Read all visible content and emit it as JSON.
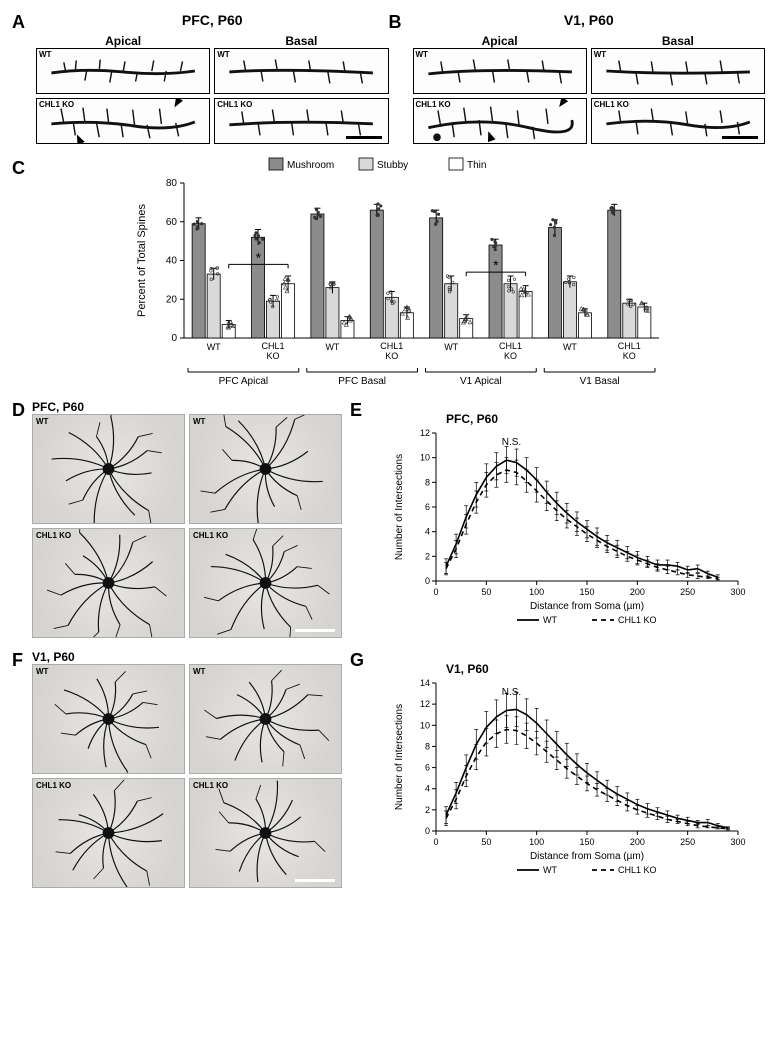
{
  "panelA": {
    "letter": "A",
    "title": "PFC, P60",
    "columns": [
      "Apical",
      "Basal"
    ],
    "rows": [
      "WT",
      "CHL1 KO"
    ],
    "arrows_on_ko_apical": true,
    "scalebar_on": "ko_basal"
  },
  "panelB": {
    "letter": "B",
    "title": "V1, P60",
    "columns": [
      "Apical",
      "Basal"
    ],
    "rows": [
      "WT",
      "CHL1 KO"
    ],
    "arrows_on_ko_apical": true,
    "scalebar_on": "ko_basal"
  },
  "panelC": {
    "letter": "C",
    "type": "bar",
    "legend": [
      {
        "label": "Mushroom",
        "color": "#8c8c8c"
      },
      {
        "label": "Stubby",
        "color": "#d9d9d9"
      },
      {
        "label": "Thin",
        "color": "#ffffff"
      }
    ],
    "y_label": "Percent of Total Spines",
    "y_lim": [
      0,
      80
    ],
    "y_tick_step": 20,
    "groups": [
      {
        "region": "PFC Apical",
        "cond": "WT",
        "vals": [
          59,
          33,
          7
        ],
        "err": [
          3,
          3,
          2
        ]
      },
      {
        "region": "PFC Apical",
        "cond": "CHL1 KO",
        "vals": [
          52,
          19,
          28
        ],
        "err": [
          4,
          3,
          4
        ]
      },
      {
        "region": "PFC Basal",
        "cond": "WT",
        "vals": [
          64,
          26,
          9
        ],
        "err": [
          3,
          3,
          2
        ]
      },
      {
        "region": "PFC Basal",
        "cond": "CHL1 KO",
        "vals": [
          66,
          21,
          13
        ],
        "err": [
          3,
          3,
          3
        ]
      },
      {
        "region": "V1 Apical",
        "cond": "WT",
        "vals": [
          62,
          28,
          10
        ],
        "err": [
          4,
          4,
          2
        ]
      },
      {
        "region": "V1 Apical",
        "cond": "CHL1 KO",
        "vals": [
          48,
          28,
          24
        ],
        "err": [
          3,
          4,
          3
        ]
      },
      {
        "region": "V1 Basal",
        "cond": "WT",
        "vals": [
          57,
          29,
          13
        ],
        "err": [
          4,
          3,
          2
        ]
      },
      {
        "region": "V1 Basal",
        "cond": "CHL1 KO",
        "vals": [
          66,
          18,
          16
        ],
        "err": [
          3,
          2,
          2
        ]
      }
    ],
    "region_labels": [
      "PFC Apical",
      "PFC Basal",
      "V1 Apical",
      "V1 Basal"
    ],
    "sig_brackets": [
      {
        "from_group": 0,
        "to_group": 1,
        "bar_index": 2,
        "label": "*",
        "y": 38
      },
      {
        "from_group": 4,
        "to_group": 5,
        "bar_index": 2,
        "label": "*",
        "y": 34
      }
    ],
    "axis_fontsize": 11,
    "tick_fontsize": 10,
    "bar_border": "#000",
    "scatter_color": "#333"
  },
  "panelD": {
    "letter": "D",
    "title": "PFC, P60",
    "genotypes": [
      "WT",
      "WT",
      "CHL1 KO",
      "CHL1 KO"
    ],
    "scalebar_tile_index": 3
  },
  "panelE": {
    "letter": "E",
    "type": "line",
    "title": "PFC, P60",
    "y_label": "Number of Intersections",
    "x_label": "Distance from Soma (µm)",
    "x_lim": [
      0,
      300
    ],
    "x_tick_step": 50,
    "y_lim": [
      0,
      12
    ],
    "y_tick_step": 2,
    "ns_label": "N.S.",
    "series": [
      {
        "name": "WT",
        "style": "solid",
        "color": "#000",
        "x": [
          10,
          20,
          30,
          40,
          50,
          60,
          70,
          80,
          90,
          100,
          110,
          120,
          130,
          140,
          150,
          160,
          170,
          180,
          190,
          200,
          210,
          220,
          230,
          240,
          250,
          260,
          270,
          280
        ],
        "y": [
          1.2,
          3.0,
          5.2,
          7.0,
          8.4,
          9.3,
          9.8,
          9.6,
          9.0,
          8.2,
          7.2,
          6.3,
          5.5,
          4.8,
          4.2,
          3.6,
          3.1,
          2.7,
          2.3,
          1.9,
          1.6,
          1.3,
          1.3,
          1.2,
          0.9,
          1.0,
          0.6,
          0.3
        ],
        "err": [
          0.6,
          0.8,
          0.9,
          1.0,
          1.1,
          1.1,
          1.1,
          1.1,
          1.0,
          1.0,
          0.9,
          0.9,
          0.8,
          0.8,
          0.7,
          0.7,
          0.6,
          0.6,
          0.5,
          0.5,
          0.4,
          0.4,
          0.4,
          0.3,
          0.3,
          0.3,
          0.2,
          0.2
        ]
      },
      {
        "name": "CHL1 KO",
        "style": "dashed",
        "color": "#000",
        "x": [
          10,
          20,
          30,
          40,
          50,
          60,
          70,
          80,
          90,
          100,
          110,
          120,
          130,
          140,
          150,
          160,
          170,
          180,
          190,
          200,
          210,
          220,
          230,
          240,
          250,
          260,
          270,
          280
        ],
        "y": [
          1.0,
          2.6,
          4.6,
          6.4,
          7.8,
          8.6,
          9.0,
          8.8,
          8.1,
          7.3,
          6.5,
          5.7,
          5.0,
          4.4,
          3.8,
          3.3,
          2.8,
          2.4,
          2.0,
          1.7,
          1.4,
          1.1,
          0.9,
          0.7,
          0.5,
          0.4,
          0.3,
          0.2
        ],
        "err": [
          0.5,
          0.7,
          0.8,
          0.9,
          1.0,
          1.0,
          1.0,
          1.0,
          0.9,
          0.9,
          0.8,
          0.8,
          0.7,
          0.7,
          0.6,
          0.6,
          0.5,
          0.5,
          0.4,
          0.4,
          0.3,
          0.3,
          0.3,
          0.2,
          0.2,
          0.2,
          0.1,
          0.1
        ]
      }
    ],
    "legend": [
      {
        "label": "WT",
        "style": "solid"
      },
      {
        "label": "CHL1 KO",
        "style": "dashed"
      }
    ]
  },
  "panelF": {
    "letter": "F",
    "title": "V1, P60",
    "genotypes": [
      "WT",
      "WT",
      "CHL1 KO",
      "CHL1 KO"
    ],
    "scalebar_tile_index": 3
  },
  "panelG": {
    "letter": "G",
    "type": "line",
    "title": "V1, P60",
    "y_label": "Number of Intersections",
    "x_label": "Distance from Soma (µm)",
    "x_lim": [
      0,
      300
    ],
    "x_tick_step": 50,
    "y_lim": [
      0,
      14
    ],
    "y_tick_step": 2,
    "ns_label": "N.S.",
    "series": [
      {
        "name": "WT",
        "style": "solid",
        "color": "#000",
        "x": [
          10,
          20,
          30,
          40,
          50,
          60,
          70,
          80,
          90,
          100,
          110,
          120,
          130,
          140,
          150,
          160,
          170,
          180,
          190,
          200,
          210,
          220,
          230,
          240,
          250,
          260,
          270,
          280,
          290
        ],
        "y": [
          1.5,
          3.6,
          6.0,
          8.2,
          9.8,
          10.8,
          11.4,
          11.5,
          11.0,
          10.2,
          9.2,
          8.2,
          7.2,
          6.3,
          5.5,
          4.8,
          4.1,
          3.5,
          3.0,
          2.5,
          2.1,
          1.8,
          1.5,
          1.2,
          1.0,
          0.8,
          0.8,
          0.5,
          0.3
        ],
        "err": [
          0.8,
          1.0,
          1.2,
          1.4,
          1.5,
          1.6,
          1.6,
          1.6,
          1.5,
          1.4,
          1.3,
          1.2,
          1.1,
          1.0,
          0.9,
          0.8,
          0.7,
          0.7,
          0.6,
          0.5,
          0.5,
          0.4,
          0.4,
          0.3,
          0.3,
          0.2,
          0.3,
          0.2,
          0.1
        ]
      },
      {
        "name": "CHL1 KO",
        "style": "dashed",
        "color": "#000",
        "x": [
          10,
          20,
          30,
          40,
          50,
          60,
          70,
          80,
          90,
          100,
          110,
          120,
          130,
          140,
          150,
          160,
          170,
          180,
          190,
          200,
          210,
          220,
          230,
          240,
          250,
          260,
          270,
          280,
          290
        ],
        "y": [
          1.2,
          3.0,
          5.2,
          7.0,
          8.4,
          9.2,
          9.6,
          9.5,
          9.0,
          8.3,
          7.5,
          6.7,
          5.9,
          5.2,
          4.5,
          3.9,
          3.4,
          2.9,
          2.4,
          2.0,
          1.7,
          1.4,
          1.1,
          0.9,
          0.7,
          0.5,
          0.4,
          0.3,
          0.2
        ],
        "err": [
          0.7,
          0.9,
          1.0,
          1.2,
          1.3,
          1.3,
          1.3,
          1.3,
          1.2,
          1.1,
          1.0,
          0.9,
          0.9,
          0.8,
          0.7,
          0.6,
          0.6,
          0.5,
          0.5,
          0.4,
          0.4,
          0.3,
          0.3,
          0.2,
          0.2,
          0.2,
          0.1,
          0.1,
          0.1
        ]
      }
    ],
    "legend": [
      {
        "label": "WT",
        "style": "solid"
      },
      {
        "label": "CHL1 KO",
        "style": "dashed"
      }
    ]
  }
}
